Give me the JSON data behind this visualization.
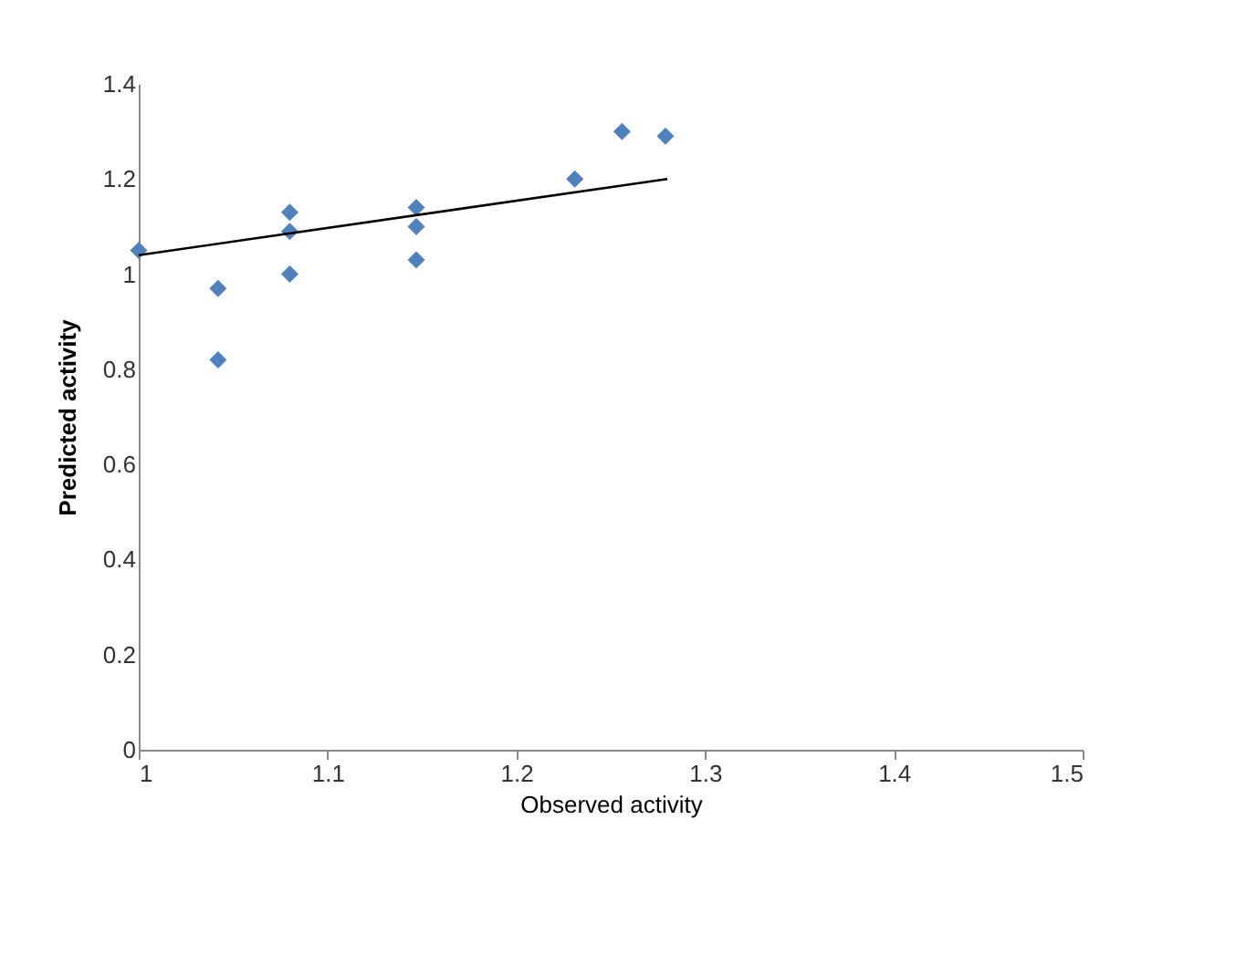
{
  "chart_data": {
    "type": "scatter",
    "xlabel": "Observed activity",
    "ylabel": "Predicted activity",
    "xlim": [
      1,
      1.5
    ],
    "xticks": [
      1,
      1.1,
      1.2,
      1.3,
      1.4,
      1.5
    ],
    "ylim": [
      0,
      1.4
    ],
    "yticks": [
      0,
      0.2,
      0.4,
      0.6,
      0.8,
      1,
      1.2,
      1.4
    ],
    "grid": false,
    "marker": "diamond",
    "series": [
      {
        "color": "#4f81bd",
        "x": [
          1.0,
          1.042,
          1.042,
          1.08,
          1.08,
          1.08,
          1.147,
          1.147,
          1.147,
          1.231,
          1.256,
          1.279
        ],
        "values": [
          1.05,
          0.97,
          0.82,
          1.13,
          1.09,
          1.0,
          1.14,
          1.1,
          1.03,
          1.2,
          1.3,
          1.29
        ]
      },
      {
        "type": "line",
        "color": "#000000",
        "line_style": "solid",
        "marker": "none",
        "x": [
          1.0,
          1.28
        ],
        "values": [
          1.04,
          1.2
        ]
      }
    ]
  }
}
